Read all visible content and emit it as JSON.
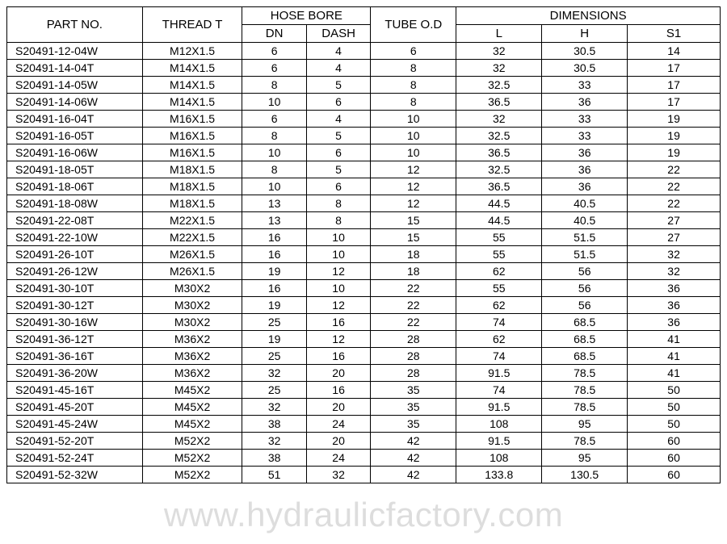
{
  "table": {
    "columns": {
      "part_no": "PART NO.",
      "thread_t": "THREAD T",
      "hose_bore": "HOSE BORE",
      "hose_bore_dn": "DN",
      "hose_bore_dash": "DASH",
      "tube_od": "TUBE O.D",
      "dimensions": "DIMENSIONS",
      "dim_l": "L",
      "dim_h": "H",
      "dim_s1": "S1"
    },
    "col_widths_pct": [
      19,
      14,
      9,
      9,
      12,
      12,
      12,
      13
    ],
    "header_fontsize": 15,
    "cell_fontsize": 14,
    "border_color": "#000000",
    "background_color": "#ffffff",
    "text_color": "#000000",
    "rows": [
      [
        "S20491-12-04W",
        "M12X1.5",
        "6",
        "4",
        "6",
        "32",
        "30.5",
        "14"
      ],
      [
        "S20491-14-04T",
        "M14X1.5",
        "6",
        "4",
        "8",
        "32",
        "30.5",
        "17"
      ],
      [
        "S20491-14-05W",
        "M14X1.5",
        "8",
        "5",
        "8",
        "32.5",
        "33",
        "17"
      ],
      [
        "S20491-14-06W",
        "M14X1.5",
        "10",
        "6",
        "8",
        "36.5",
        "36",
        "17"
      ],
      [
        "S20491-16-04T",
        "M16X1.5",
        "6",
        "4",
        "10",
        "32",
        "33",
        "19"
      ],
      [
        "S20491-16-05T",
        "M16X1.5",
        "8",
        "5",
        "10",
        "32.5",
        "33",
        "19"
      ],
      [
        "S20491-16-06W",
        "M16X1.5",
        "10",
        "6",
        "10",
        "36.5",
        "36",
        "19"
      ],
      [
        "S20491-18-05T",
        "M18X1.5",
        "8",
        "5",
        "12",
        "32.5",
        "36",
        "22"
      ],
      [
        "S20491-18-06T",
        "M18X1.5",
        "10",
        "6",
        "12",
        "36.5",
        "36",
        "22"
      ],
      [
        "S20491-18-08W",
        "M18X1.5",
        "13",
        "8",
        "12",
        "44.5",
        "40.5",
        "22"
      ],
      [
        "S20491-22-08T",
        "M22X1.5",
        "13",
        "8",
        "15",
        "44.5",
        "40.5",
        "27"
      ],
      [
        "S20491-22-10W",
        "M22X1.5",
        "16",
        "10",
        "15",
        "55",
        "51.5",
        "27"
      ],
      [
        "S20491-26-10T",
        "M26X1.5",
        "16",
        "10",
        "18",
        "55",
        "51.5",
        "32"
      ],
      [
        "S20491-26-12W",
        "M26X1.5",
        "19",
        "12",
        "18",
        "62",
        "56",
        "32"
      ],
      [
        "S20491-30-10T",
        "M30X2",
        "16",
        "10",
        "22",
        "55",
        "56",
        "36"
      ],
      [
        "S20491-30-12T",
        "M30X2",
        "19",
        "12",
        "22",
        "62",
        "56",
        "36"
      ],
      [
        "S20491-30-16W",
        "M30X2",
        "25",
        "16",
        "22",
        "74",
        "68.5",
        "36"
      ],
      [
        "S20491-36-12T",
        "M36X2",
        "19",
        "12",
        "28",
        "62",
        "68.5",
        "41"
      ],
      [
        "S20491-36-16T",
        "M36X2",
        "25",
        "16",
        "28",
        "74",
        "68.5",
        "41"
      ],
      [
        "S20491-36-20W",
        "M36X2",
        "32",
        "20",
        "28",
        "91.5",
        "78.5",
        "41"
      ],
      [
        "S20491-45-16T",
        "M45X2",
        "25",
        "16",
        "35",
        "74",
        "78.5",
        "50"
      ],
      [
        "S20491-45-20T",
        "M45X2",
        "32",
        "20",
        "35",
        "91.5",
        "78.5",
        "50"
      ],
      [
        "S20491-45-24W",
        "M45X2",
        "38",
        "24",
        "35",
        "108",
        "95",
        "50"
      ],
      [
        "S20491-52-20T",
        "M52X2",
        "32",
        "20",
        "42",
        "91.5",
        "78.5",
        "60"
      ],
      [
        "S20491-52-24T",
        "M52X2",
        "38",
        "24",
        "42",
        "108",
        "95",
        "60"
      ],
      [
        "S20491-52-32W",
        "M52X2",
        "51",
        "32",
        "42",
        "133.8",
        "130.5",
        "60"
      ]
    ]
  },
  "watermark": {
    "text": "www.hydraulicfactory.com",
    "color": "rgba(120,120,120,0.25)",
    "fontsize": 42
  }
}
